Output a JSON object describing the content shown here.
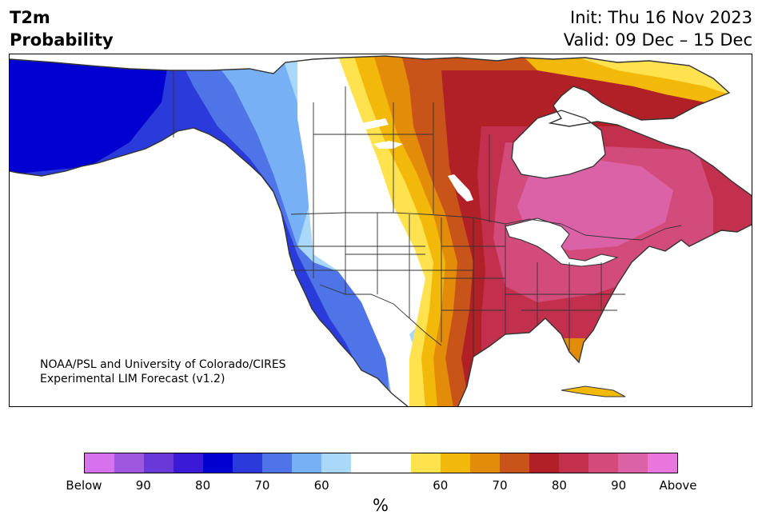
{
  "title": {
    "line1": "T2m",
    "line2": "Probability"
  },
  "forecast": {
    "init": "Init: Thu 16 Nov 2023",
    "valid": "Valid: 09 Dec – 15 Dec"
  },
  "credit": {
    "line1": "NOAA/PSL and University of Colorado/CIRES",
    "line2": "Experimental LIM Forecast (v1.2)"
  },
  "colorbar": {
    "colors": [
      "#d672ee",
      "#a057e0",
      "#6b38d8",
      "#3a1ad6",
      "#0000d0",
      "#2a3adb",
      "#4f74e8",
      "#78b0f5",
      "#aad8fa",
      "#ffffff",
      "#ffffff",
      "#ffe24e",
      "#f2b90a",
      "#e28c0a",
      "#c95419",
      "#b22027",
      "#c2304d",
      "#d24b7a",
      "#dc62a8",
      "#e976dc"
    ],
    "tick_labels": [
      "Below",
      "90",
      "80",
      "70",
      "60",
      "60",
      "70",
      "80",
      "90",
      "Above"
    ],
    "unit": "%"
  },
  "map_colors": {
    "ocean": "#ffffff",
    "border": "#333333",
    "blue_darkest": "#0000d0",
    "blue_dark": "#2a3adb",
    "blue_mid": "#4f74e8",
    "blue_light": "#78b0f5",
    "blue_pale": "#aad8fa",
    "neutral": "#ffffff",
    "yellow": "#ffe24e",
    "gold": "#f2b90a",
    "orange": "#e28c0a",
    "burnt": "#c95419",
    "red": "#b22027",
    "crimson": "#c2304d",
    "rose": "#d24b7a",
    "pink": "#dc62a8"
  }
}
